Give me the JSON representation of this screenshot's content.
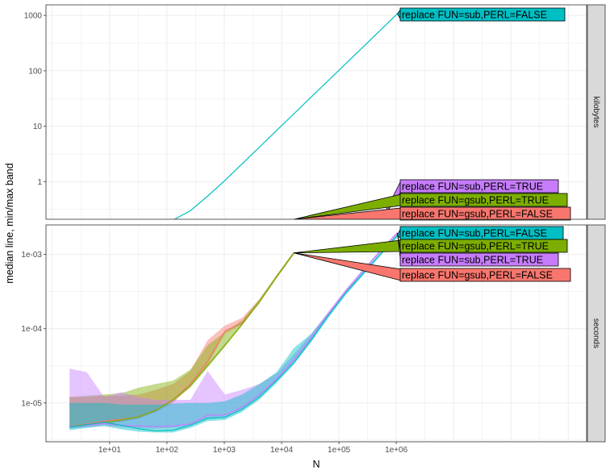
{
  "chart_data": {
    "type": "line",
    "xlabel": "N",
    "ylabel": "median line, min/max band",
    "x_scale": "log10",
    "x_ticks": [
      "1e+01",
      "1e+02",
      "1e+03",
      "1e+04",
      "1e+05",
      "1e+06"
    ],
    "x_tick_values": [
      10,
      100,
      1000,
      10000,
      100000,
      1000000
    ],
    "grid": true,
    "colors": {
      "replace FUN=gsub,PERL=FALSE": "#F8766D",
      "replace FUN=gsub,PERL=TRUE": "#7CAE00",
      "replace FUN=sub,PERL=FALSE": "#00BFC4",
      "replace FUN=sub,PERL=TRUE": "#C77CFF"
    },
    "panels": [
      {
        "strip": "kilobytes",
        "y_scale": "log10",
        "ylim": [
          0.21,
          1550
        ],
        "y_ticks": [
          "1",
          "10",
          "100",
          "1000"
        ],
        "y_tick_values": [
          1,
          10,
          100,
          1000
        ],
        "series": [
          {
            "name": "replace FUN=gsub,PERL=FALSE",
            "x": [
              2,
              4,
              8,
              16,
              32,
              64,
              128,
              256,
              512,
              1024,
              2048,
              4096,
              8192,
              16384
            ],
            "median": [
              0.2,
              0.2,
              0.2,
              0.2,
              0.2,
              0.2,
              0.2,
              0.2,
              0.2,
              0.2,
              0.2,
              0.2,
              0.2,
              0.2
            ]
          },
          {
            "name": "replace FUN=gsub,PERL=TRUE",
            "x": [
              2,
              4,
              8,
              16,
              32,
              64,
              128,
              256,
              512,
              1024,
              2048,
              4096,
              8192,
              16384
            ],
            "median": [
              0.2,
              0.2,
              0.2,
              0.2,
              0.2,
              0.2,
              0.2,
              0.2,
              0.2,
              0.2,
              0.2,
              0.2,
              0.2,
              0.2
            ]
          },
          {
            "name": "replace FUN=sub,PERL=TRUE",
            "x": [
              2,
              4,
              8,
              16,
              32,
              64,
              128,
              256,
              512,
              1024,
              2048,
              4096,
              8192,
              16384,
              32768,
              65536,
              131072,
              262144,
              524288,
              1048576
            ],
            "median": [
              0.2,
              0.2,
              0.2,
              0.2,
              0.2,
              0.2,
              0.2,
              0.2,
              0.2,
              0.2,
              0.2,
              0.2,
              0.2,
              0.2,
              0.2,
              0.2,
              0.2,
              0.2,
              0.2,
              0.2
            ]
          },
          {
            "name": "replace FUN=sub,PERL=FALSE",
            "x": [
              2,
              4,
              8,
              16,
              32,
              64,
              128,
              256,
              512,
              1024,
              2048,
              4096,
              8192,
              16384,
              32768,
              65536,
              131072,
              262144,
              524288,
              1048576
            ],
            "median": [
              0.2,
              0.2,
              0.2,
              0.2,
              0.2,
              0.2,
              0.2,
              0.3,
              0.55,
              1.05,
              2.1,
              4.2,
              8.4,
              16.8,
              33.6,
              67,
              134,
              268,
              536,
              1073
            ]
          }
        ],
        "labels": [
          "replace FUN=sub,PERL=FALSE",
          "replace FUN=sub,PERL=TRUE",
          "replace FUN=gsub,PERL=TRUE",
          "replace FUN=gsub,PERL=FALSE"
        ]
      },
      {
        "strip": "seconds",
        "y_scale": "log10",
        "ylim": [
          3e-06,
          0.0025
        ],
        "y_ticks": [
          "1e-05",
          "1e-04",
          "1e-03"
        ],
        "y_tick_values": [
          1e-05,
          0.0001,
          0.001
        ],
        "series": [
          {
            "name": "replace FUN=gsub,PERL=FALSE",
            "x": [
              2,
              4,
              8,
              16,
              32,
              64,
              128,
              256,
              512,
              1024,
              2048,
              4096,
              8192,
              16384
            ],
            "median": [
              4.8e-06,
              5.2e-06,
              5.7e-06,
              6e-06,
              6.5e-06,
              8e-06,
              1.1e-05,
              1.8e-05,
              3.6e-05,
              9.3e-05,
              0.00012,
              0.00023,
              0.0005,
              0.00105
            ],
            "min": [
              4.6e-06,
              4.9e-06,
              5.3e-06,
              5.6e-06,
              6.1e-06,
              7.5e-06,
              1e-05,
              1.7e-05,
              3.3e-05,
              8.5e-05,
              0.000115,
              0.00022,
              0.00048,
              0.001
            ],
            "max": [
              1.2e-05,
              1.2e-05,
              1.25e-05,
              1.25e-05,
              1.3e-05,
              1.5e-05,
              1.8e-05,
              2.7e-05,
              7e-05,
              0.00011,
              0.00014,
              0.00025,
              0.00053,
              0.0011
            ]
          },
          {
            "name": "replace FUN=gsub,PERL=TRUE",
            "x": [
              2,
              4,
              8,
              16,
              32,
              64,
              128,
              256,
              512,
              1024,
              2048,
              4096,
              8192,
              16384
            ],
            "median": [
              4.8e-06,
              5.1e-06,
              5.4e-06,
              5.9e-06,
              6.5e-06,
              8e-06,
              1.1e-05,
              1.7e-05,
              3.2e-05,
              6e-05,
              0.000115,
              0.00023,
              0.0005,
              0.00105
            ],
            "min": [
              4.6e-06,
              4.9e-06,
              5.2e-06,
              5.6e-06,
              6.2e-06,
              7.6e-06,
              1.05e-05,
              1.6e-05,
              3e-05,
              5.7e-05,
              0.00011,
              0.00022,
              0.00048,
              0.001
            ],
            "max": [
              1.2e-05,
              1.25e-05,
              1.3e-05,
              1.35e-05,
              1.6e-05,
              1.8e-05,
              2e-05,
              2.8e-05,
              6e-05,
              9e-05,
              0.00013,
              0.00025,
              0.00053,
              0.0011
            ]
          },
          {
            "name": "replace FUN=sub,PERL=TRUE",
            "x": [
              2,
              4,
              8,
              16,
              32,
              64,
              128,
              256,
              512,
              1024,
              2048,
              4096,
              8192,
              16384,
              32768,
              65536,
              131072,
              262144,
              524288,
              1048576
            ],
            "median": [
              4.8e-06,
              5e-06,
              5.3e-06,
              5e-06,
              4.9e-06,
              4.8e-06,
              4.9e-06,
              5.2e-06,
              6.8e-06,
              6.9e-06,
              8.8e-06,
              1.3e-05,
              2.1e-05,
              3.8e-05,
              7.5e-05,
              0.00016,
              0.00032,
              0.0006,
              0.0011,
              0.00195
            ],
            "min": [
              4.5e-06,
              4.7e-06,
              4.9e-06,
              4.7e-06,
              4.6e-06,
              4.5e-06,
              4.6e-06,
              4.9e-06,
              6.3e-06,
              6.4e-06,
              8.2e-06,
              1.2e-05,
              2e-05,
              3.6e-05,
              7.1e-05,
              0.00015,
              0.0003,
              0.00057,
              0.00105,
              0.00185
            ],
            "max": [
              2.9e-05,
              2.6e-05,
              1.2e-05,
              1.4e-05,
              1.2e-05,
              1.1e-05,
              1.1e-05,
              1.1e-05,
              2.7e-05,
              1.3e-05,
              1.5e-05,
              1.8e-05,
              2.5e-05,
              4.5e-05,
              8.5e-05,
              0.00017,
              0.00034,
              0.00063,
              0.00115,
              0.00205
            ]
          },
          {
            "name": "replace FUN=sub,PERL=FALSE",
            "x": [
              2,
              4,
              8,
              16,
              32,
              64,
              128,
              256,
              512,
              1024,
              2048,
              4096,
              8192,
              16384,
              32768,
              65536,
              131072,
              262144,
              524288,
              1048576
            ],
            "median": [
              4.7e-06,
              5.1e-06,
              5.5e-06,
              5e-06,
              4.5e-06,
              4.2e-06,
              4.3e-06,
              5e-06,
              6.2e-06,
              6.4e-06,
              8.2e-06,
              1.2e-05,
              2e-05,
              3.5e-05,
              7e-05,
              0.00015,
              0.0003,
              0.00055,
              0.001,
              0.0018
            ],
            "min": [
              4.3e-06,
              4.6e-06,
              4.9e-06,
              4.4e-06,
              4.1e-06,
              4e-06,
              4e-06,
              4.6e-06,
              5.7e-06,
              5.9e-06,
              7.6e-06,
              1.1e-05,
              1.85e-05,
              3.3e-05,
              6.6e-05,
              0.00014,
              0.000285,
              0.00052,
              0.00095,
              0.0017
            ],
            "max": [
              1e-05,
              1e-05,
              1e-05,
              9.5e-06,
              9.5e-06,
              9.5e-06,
              9.8e-06,
              1e-05,
              1e-05,
              1.05e-05,
              1.3e-05,
              1.8e-05,
              2.6e-05,
              5.5e-05,
              8.5e-05,
              0.000165,
              0.00032,
              0.00058,
              0.00105,
              0.0019
            ]
          }
        ],
        "labels": [
          "replace FUN=sub,PERL=FALSE",
          "replace FUN=gsub,PERL=TRUE",
          "replace FUN=sub,PERL=TRUE",
          "replace FUN=gsub,PERL=FALSE"
        ]
      }
    ]
  }
}
